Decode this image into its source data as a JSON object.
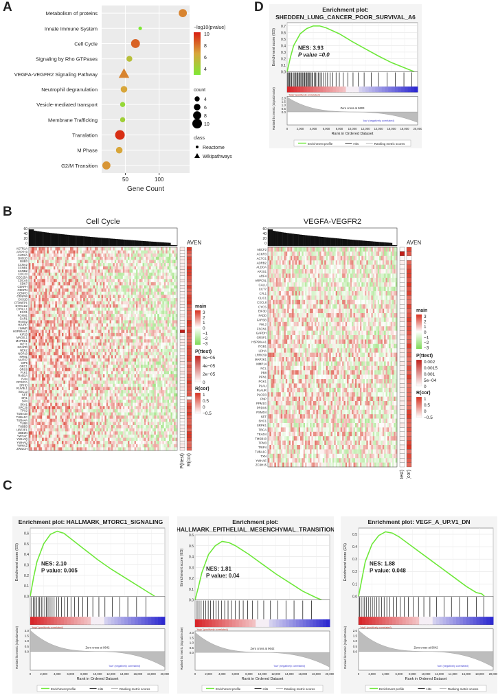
{
  "panels": {
    "A": "A",
    "B": "B",
    "C": "C",
    "D": "D"
  },
  "chart_data": [
    {
      "panel": "A",
      "type": "scatter",
      "xlabel": "Gene Count",
      "x_ticks": [
        50,
        100
      ],
      "xlim": [
        15,
        145
      ],
      "categories": [
        "Metabolism of proteins",
        "Innate Immune System",
        "Cell Cycle",
        "Signaling by Rho GTPases",
        "VEGFA-VEGFR2 Signaling Pathway",
        "Neutrophil degranulation",
        "Vesicle-mediated transport",
        "Membrane Trafficking",
        "Translation",
        "M Phase",
        "G2/M Transition"
      ],
      "points": [
        {
          "term": "Metabolism of proteins",
          "gene_count": 135,
          "neg_log10_p": 8.0,
          "count": 8,
          "class": "Reactome"
        },
        {
          "term": "Innate Immune System",
          "gene_count": 72,
          "neg_log10_p": 3.0,
          "count": 2,
          "class": "Reactome"
        },
        {
          "term": "Cell Cycle",
          "gene_count": 65,
          "neg_log10_p": 9.0,
          "count": 9,
          "class": "Reactome"
        },
        {
          "term": "Signaling by Rho GTPases",
          "gene_count": 56,
          "neg_log10_p": 5.5,
          "count": 5,
          "class": "Reactome"
        },
        {
          "term": "VEGFA-VEGFR2 Signaling Pathway",
          "gene_count": 48,
          "neg_log10_p": 8.0,
          "count": 10,
          "class": "Wikipathways"
        },
        {
          "term": "Neutrophil degranulation",
          "gene_count": 48,
          "neg_log10_p": 7.0,
          "count": 6,
          "class": "Reactome"
        },
        {
          "term": "Vesicle-mediated transport",
          "gene_count": 46,
          "neg_log10_p": 4.0,
          "count": 4,
          "class": "Reactome"
        },
        {
          "term": "Membrane Trafficking",
          "gene_count": 46,
          "neg_log10_p": 4.5,
          "count": 4,
          "class": "Reactome"
        },
        {
          "term": "Translation",
          "gene_count": 42,
          "neg_log10_p": 10.5,
          "count": 10,
          "class": "Reactome"
        },
        {
          "term": "M Phase",
          "gene_count": 41,
          "neg_log10_p": 7.0,
          "count": 6,
          "class": "Reactome"
        },
        {
          "term": "G2/M Transition",
          "gene_count": 22,
          "neg_log10_p": 7.5,
          "count": 8,
          "class": "Reactome"
        }
      ],
      "legend": {
        "color_title": "−log10(pvalue)",
        "color_ticks": [
          "10",
          "8",
          "6",
          "4"
        ],
        "size_title": "count",
        "size_ticks": [
          "4",
          "6",
          "8",
          "10"
        ],
        "shape_title": "class",
        "shapes": [
          "Reactome",
          "Wikipathways"
        ]
      },
      "colors": {
        "low": "#7fe836",
        "mid": "#d8a63a",
        "high": "#d81e10"
      }
    },
    {
      "panel": "D",
      "type": "line",
      "title_line1": "Enrichment plot:",
      "title_line2": "SHEDDEN_LUNG_CANCER_POOR_SURVIVAL_A6",
      "ylabel": "Enrichment score (ES)",
      "xlabel": "Rank in Ordered Dataset",
      "ylabel_rank": "Ranked list metric (Signal2Noise)",
      "y_ticks": [
        "0.7",
        "0.6",
        "0.5",
        "0.4",
        "0.3",
        "0.2",
        "0.1",
        "0.0"
      ],
      "x_ticks": [
        "0",
        "2,000",
        "4,000",
        "6,000",
        "8,000",
        "10,000",
        "12,000",
        "14,000",
        "16,000",
        "18,000",
        "20,000"
      ],
      "rank_ticks": [
        "2.0",
        "1.5",
        "1.0",
        "0.5",
        "0.0"
      ],
      "nes": "NES: 3.93",
      "pval": "P value =0.0",
      "pos_label": "'high' (positively correlated)",
      "neg_label": "'low' (negatively correlated)",
      "zero_cross": "Zero cross at 9603",
      "legend": [
        "Enrichment profile",
        "Hits",
        "Ranking metric scores"
      ],
      "es_curve": [
        [
          0,
          0.0
        ],
        [
          500,
          0.22
        ],
        [
          1000,
          0.4
        ],
        [
          2000,
          0.58
        ],
        [
          3000,
          0.66
        ],
        [
          4000,
          0.7
        ],
        [
          5000,
          0.7
        ],
        [
          6000,
          0.67
        ],
        [
          8000,
          0.58
        ],
        [
          10000,
          0.46
        ],
        [
          12000,
          0.35
        ],
        [
          14000,
          0.24
        ],
        [
          16000,
          0.14
        ],
        [
          18000,
          0.06
        ],
        [
          19500,
          0.0
        ]
      ],
      "xmax": 20000,
      "ymin": 0,
      "ymax": 0.75,
      "hits_x": [
        100,
        220,
        380,
        520,
        700,
        880,
        1050,
        1200,
        1350,
        1500,
        1650,
        1800,
        1950,
        2100,
        2260,
        2400,
        2550,
        2700,
        2850,
        3000,
        3150,
        3300,
        3450,
        3620,
        3800,
        3950,
        4150,
        4350,
        4550,
        4800,
        5050,
        5300,
        5600,
        5900,
        6200,
        6600,
        7000,
        7500,
        8000,
        8600,
        9300,
        10100,
        10900,
        11800,
        12900,
        14000,
        15300,
        16600,
        17900,
        19100
      ]
    },
    {
      "panel": "B",
      "type": "heatmap",
      "title": "Cell Cycle",
      "column_label": "AVEN",
      "rows": [
        "ACTR1A",
        "ARPP19",
        "AURKA",
        "BUB1B",
        "BUB3",
        "CCNA2",
        "CCNB1",
        "CCNB2",
        "CDC20",
        "CDC25A",
        "CDCA5",
        "CDK7",
        "CENPH",
        "CENPN",
        "CENPO",
        "CENPW",
        "CKS1B",
        "CTDNEP1",
        "DYNC1I2",
        "DYNLL1",
        "EXO1",
        "FOXM1",
        "GAR1",
        "HAUS2",
        "HJURP",
        "HMMR",
        "HSP90AA1",
        "KIF23",
        "MAD2L1",
        "MAPRE1",
        "MZT1",
        "NCAPD",
        "NEK2",
        "NOP10",
        "NPM1",
        "NUP37",
        "OIP5",
        "ORC1",
        "ORC6",
        "PLK1",
        "RAB1A",
        "RAN",
        "RPS27A",
        "SRHD",
        "RUVBL1",
        "SEC13",
        "SET",
        "SFI1",
        "SFN",
        "SKA1",
        "SPC25",
        "TPX2",
        "TUBA1B",
        "TUBA1C",
        "TUBA4A",
        "TUBB",
        "TUBB3",
        "UBE2E1",
        "UBE2N",
        "YWHAE",
        "YWHAQ",
        "YWHAQ",
        "YWHAZ",
        "ZWILCH"
      ],
      "bar_ticks": [
        "60",
        "40",
        "20",
        "0"
      ],
      "side_labels": [
        "P(ttest)",
        "R(cor)"
      ],
      "legend_main": {
        "title": "main",
        "ticks": [
          "3",
          "2",
          "1",
          "0",
          "−1",
          "−2",
          "−3"
        ]
      },
      "legend_p": {
        "title": "P(ttest)",
        "ticks": [
          "6e−05",
          "4e−05",
          "2e−05",
          "0"
        ]
      },
      "legend_r": {
        "title": "R(cor)",
        "ticks": [
          "1",
          "0.5",
          "0",
          "−0.5"
        ]
      },
      "range": [
        -3,
        3
      ]
    },
    {
      "panel": "B",
      "type": "heatmap",
      "title": "VEGFA-VEGFR2",
      "column_label": "AVEN",
      "rows": [
        "ABCF2",
        "ACKR3",
        "ACTG1",
        "ADRB2",
        "ALDOA",
        "AP2S1",
        "ARF4",
        "ARPC5L",
        "CALU",
        "CCT7",
        "CFL1",
        "CLIC1",
        "CXCL8",
        "CYCS",
        "EIF3D",
        "FADD",
        "FARSB",
        "FHL2",
        "FSCN1",
        "GAPDH",
        "GRSF1",
        "HSP90AA1",
        "ITGB1",
        "LDHA",
        "LRRC59",
        "MAP2K1",
        "MMP14",
        "NCL",
        "PB8",
        "PFN1",
        "PGK1",
        "PLAU",
        "PLAUR",
        "PLOD3",
        "PNP",
        "PPM1G",
        "PRDX6",
        "PSMD4",
        "SET",
        "SHC1",
        "SRPK1",
        "TBCA",
        "TEAD4",
        "TMSB10",
        "TPM3",
        "TRIP4",
        "TUBA1C",
        "TXN",
        "YWHAE",
        "ZC3H15"
      ],
      "bar_ticks": [
        "60",
        "40",
        "20",
        "0"
      ],
      "side_labels": [
        "P(ttest)",
        "R(cor)"
      ],
      "legend_main": {
        "title": "main",
        "ticks": [
          "3",
          "2",
          "1",
          "0",
          "−1",
          "−2",
          "−3"
        ]
      },
      "legend_p": {
        "title": "P(ttest)",
        "ticks": [
          "0.002",
          "0.0015",
          "0.001",
          "5e−04",
          "0"
        ]
      },
      "legend_r": {
        "title": "R(cor)",
        "ticks": [
          "1",
          "0.5",
          "0",
          "−0.5"
        ]
      },
      "range": [
        -3,
        3
      ]
    },
    {
      "panel": "C",
      "type": "line",
      "title_line1": "Enrichment plot: HALLMARK_MTORC1_SIGNALING",
      "title_line2": "",
      "ylabel": "Enrichment score (ES)",
      "xlabel": "Rank in Ordered Dataset",
      "ylabel_rank": "Ranked list metric (Signal2Noise)",
      "y_ticks": [
        "0.6",
        "0.5",
        "0.4",
        "0.3",
        "0.2",
        "0.1",
        "0.0"
      ],
      "x_ticks": [
        "0",
        "2,000",
        "4,000",
        "6,000",
        "8,000",
        "10,000",
        "12,000",
        "14,000",
        "16,000",
        "18,000",
        "20,000"
      ],
      "rank_ticks": [
        "2.0",
        "1.5",
        "1.0",
        "0.5",
        "0.0"
      ],
      "nes": "NES: 2.10",
      "pval": "P value: 0.005",
      "pos_label": "'high' (positively correlated)",
      "neg_label": "'low' (negatively correlated)",
      "zero_cross": "Zero cross at 9642",
      "legend": [
        "Enrichment profile",
        "Hits",
        "Ranking metric scores"
      ],
      "es_curve": [
        [
          0,
          0.0
        ],
        [
          500,
          0.18
        ],
        [
          1000,
          0.33
        ],
        [
          2000,
          0.5
        ],
        [
          3000,
          0.59
        ],
        [
          4000,
          0.62
        ],
        [
          5000,
          0.6
        ],
        [
          6000,
          0.55
        ],
        [
          8000,
          0.45
        ],
        [
          10000,
          0.35
        ],
        [
          12000,
          0.26
        ],
        [
          14000,
          0.18
        ],
        [
          16000,
          0.1
        ],
        [
          17500,
          0.04
        ],
        [
          18500,
          0.0
        ]
      ],
      "xmax": 20000,
      "ymin": 0,
      "ymax": 0.65,
      "hits_x": [
        200,
        450,
        700,
        950,
        1200,
        1400,
        1650,
        1900,
        2150,
        2400,
        2650,
        2950,
        3250,
        3550,
        3900,
        4250,
        4650,
        5100,
        5550,
        6050,
        6600,
        7200,
        7800,
        8500,
        9300,
        10200,
        11100,
        12200,
        13300,
        14500,
        15800,
        17200
      ]
    },
    {
      "panel": "C",
      "type": "line",
      "title_line1": "Enrichment plot:",
      "title_line2": "HALLMARK_EPITHELIAL_MESENCHYMAL_TRANSITION",
      "ylabel": "Enrichment score (ES)",
      "xlabel": "Rank in Ordered Dataset",
      "ylabel_rank": "Ranked list metric (Signal2Noise)",
      "y_ticks": [
        "0.6",
        "0.5",
        "0.4",
        "0.3",
        "0.2",
        "0.1",
        "0.0"
      ],
      "x_ticks": [
        "0",
        "2,000",
        "4,000",
        "6,000",
        "8,000",
        "10,000",
        "12,000",
        "14,000",
        "16,000",
        "18,000",
        "20,000"
      ],
      "rank_ticks": [
        "2.0",
        "1.5",
        "1.0",
        "0.5",
        "0.0"
      ],
      "nes": "NES: 1.81",
      "pval": "P value: 0.04",
      "pos_label": "'high' (positively correlated)",
      "neg_label": "'low' (negatively correlated)",
      "zero_cross": "Zero cross at 9642",
      "legend": [
        "Enrichment profile",
        "Hits",
        "Ranking metric scores"
      ],
      "es_curve": [
        [
          0,
          0.0
        ],
        [
          500,
          0.12
        ],
        [
          1000,
          0.25
        ],
        [
          2000,
          0.42
        ],
        [
          3000,
          0.5
        ],
        [
          4000,
          0.54
        ],
        [
          5000,
          0.53
        ],
        [
          6000,
          0.5
        ],
        [
          8000,
          0.42
        ],
        [
          10000,
          0.33
        ],
        [
          12000,
          0.24
        ],
        [
          14000,
          0.16
        ],
        [
          16000,
          0.08
        ],
        [
          18000,
          0.02
        ],
        [
          18800,
          0.0
        ]
      ],
      "xmax": 20000,
      "ymin": 0,
      "ymax": 0.6,
      "hits_x": [
        300,
        600,
        900,
        1250,
        1600,
        1950,
        2300,
        2700,
        3100,
        3500,
        3950,
        4400,
        4900,
        5400,
        5950,
        6550,
        7150,
        7800,
        8500,
        9300,
        10200,
        11200,
        12300,
        13500,
        14700,
        16000,
        17300
      ]
    },
    {
      "panel": "C",
      "type": "line",
      "title_line1": "Enrichment plot: VEGF_A_UP.V1_DN",
      "title_line2": "",
      "ylabel": "Enrichment score (ES)",
      "xlabel": "Rank in Ordered Dataset",
      "ylabel_rank": "Ranked list metric (Signal2Noise)",
      "y_ticks": [
        "0.5",
        "0.4",
        "0.3",
        "0.2",
        "0.1",
        "0.0"
      ],
      "x_ticks": [
        "0",
        "2,000",
        "4,000",
        "6,000",
        "8,000",
        "10,000",
        "12,000",
        "14,000",
        "16,000",
        "18,000",
        "20,000"
      ],
      "rank_ticks": [
        "2.0",
        "1.5",
        "1.0",
        "0.5",
        "0.0"
      ],
      "nes": "NES: 1.88",
      "pval": "P value: 0.048",
      "pos_label": "'high' (positively correlated)",
      "neg_label": "'low' (negatively correlated)",
      "zero_cross": "Zero cross at 9642",
      "legend": [
        "Enrichment profile",
        "Hits",
        "Ranking metric scores"
      ],
      "es_curve": [
        [
          0,
          0.0
        ],
        [
          500,
          0.14
        ],
        [
          1000,
          0.28
        ],
        [
          2000,
          0.42
        ],
        [
          3000,
          0.49
        ],
        [
          4000,
          0.52
        ],
        [
          5000,
          0.51
        ],
        [
          6000,
          0.48
        ],
        [
          8000,
          0.4
        ],
        [
          10000,
          0.32
        ],
        [
          12000,
          0.24
        ],
        [
          14000,
          0.16
        ],
        [
          16000,
          0.08
        ],
        [
          17500,
          0.03
        ],
        [
          18300,
          0.02
        ],
        [
          18700,
          0.0
        ]
      ],
      "xmax": 20000,
      "ymin": 0,
      "ymax": 0.55,
      "hits_x": [
        150,
        400,
        650,
        900,
        1150,
        1450,
        1750,
        2050,
        2350,
        2700,
        3050,
        3400,
        3800,
        4200,
        4650,
        5150,
        5650,
        6200,
        6800,
        7400,
        8100,
        8900,
        9700,
        10600,
        11600,
        12700,
        13800,
        15000,
        16200,
        17500,
        18600
      ]
    }
  ]
}
